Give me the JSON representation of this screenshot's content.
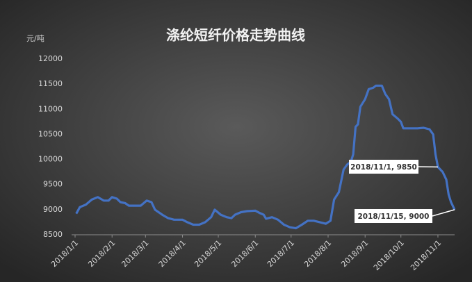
{
  "chart_data": {
    "type": "line",
    "title": "涤纶短纤价格走势曲线",
    "y_label": "元/吨",
    "x": [
      "2018/1/2",
      "2018/1/5",
      "2018/1/10",
      "2018/1/15",
      "2018/1/20",
      "2018/1/25",
      "2018/1/29",
      "2018/2/1",
      "2018/2/5",
      "2018/2/8",
      "2018/2/12",
      "2018/2/15",
      "2018/2/25",
      "2018/3/2",
      "2018/3/6",
      "2018/3/9",
      "2018/3/15",
      "2018/3/20",
      "2018/3/25",
      "2018/4/1",
      "2018/4/5",
      "2018/4/10",
      "2018/4/15",
      "2018/4/20",
      "2018/4/25",
      "2018/4/28",
      "2018/5/3",
      "2018/5/8",
      "2018/5/12",
      "2018/5/15",
      "2018/5/20",
      "2018/5/25",
      "2018/6/1",
      "2018/6/5",
      "2018/6/8",
      "2018/6/10",
      "2018/6/15",
      "2018/6/20",
      "2018/6/25",
      "2018/6/30",
      "2018/7/5",
      "2018/7/10",
      "2018/7/15",
      "2018/7/20",
      "2018/7/25",
      "2018/7/30",
      "2018/8/3",
      "2018/8/6",
      "2018/8/10",
      "2018/8/14",
      "2018/8/17",
      "2018/8/20",
      "2018/8/22",
      "2018/8/24",
      "2018/8/26",
      "2018/8/28",
      "2018/9/1",
      "2018/9/4",
      "2018/9/8",
      "2018/9/10",
      "2018/9/15",
      "2018/9/18",
      "2018/9/21",
      "2018/9/24",
      "2018/9/28",
      "2018/10/1",
      "2018/10/3",
      "2018/10/15",
      "2018/10/20",
      "2018/10/25",
      "2018/10/28",
      "2018/10/30",
      "2018/11/1",
      "2018/11/5",
      "2018/11/8",
      "2018/11/10",
      "2018/11/12",
      "2018/11/15"
    ],
    "series": [
      {
        "name": "涤纶短纤",
        "color": "#4472c4",
        "values": [
          8920,
          9050,
          9100,
          9200,
          9250,
          9180,
          9180,
          9250,
          9220,
          9150,
          9130,
          9080,
          9080,
          9180,
          9150,
          9000,
          8900,
          8830,
          8800,
          8800,
          8750,
          8700,
          8700,
          8750,
          8850,
          9000,
          8900,
          8850,
          8830,
          8900,
          8950,
          8970,
          8980,
          8930,
          8900,
          8820,
          8850,
          8800,
          8700,
          8650,
          8630,
          8700,
          8780,
          8780,
          8750,
          8720,
          8780,
          9200,
          9350,
          9800,
          9900,
          9950,
          10100,
          10650,
          10700,
          11050,
          11200,
          11400,
          11430,
          11470,
          11470,
          11300,
          11200,
          10900,
          10820,
          10750,
          10620,
          10620,
          10630,
          10600,
          10500,
          10100,
          9850,
          9750,
          9600,
          9300,
          9150,
          9000
        ]
      }
    ],
    "xlim": [
      "2018/1/1",
      "2018/11/15"
    ],
    "xticks": [
      "2018/1/1",
      "2018/2/1",
      "2018/3/1",
      "2018/4/1",
      "2018/5/1",
      "2018/6/1",
      "2018/7/1",
      "2018/8/1",
      "2018/9/1",
      "2018/10/1",
      "2018/11/1"
    ],
    "ylim": [
      8500,
      12000
    ],
    "yticks": [
      8500,
      9000,
      9500,
      10000,
      10500,
      11000,
      11500,
      12000
    ],
    "annotations": [
      {
        "text": "2018/11/1, 9850",
        "x": "2018/11/1",
        "y": 9850
      },
      {
        "text": "2018/11/15, 9000",
        "x": "2018/11/15",
        "y": 9000
      }
    ]
  }
}
